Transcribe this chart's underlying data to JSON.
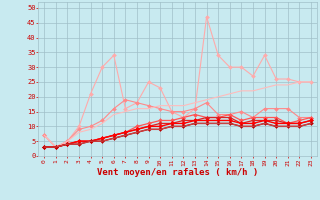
{
  "title": "",
  "xlabel": "Vent moyen/en rafales ( km/h )",
  "xlim": [
    -0.5,
    23.5
  ],
  "ylim": [
    0,
    52
  ],
  "yticks": [
    0,
    5,
    10,
    15,
    20,
    25,
    30,
    35,
    40,
    45,
    50
  ],
  "xticks": [
    0,
    1,
    2,
    3,
    4,
    5,
    6,
    7,
    8,
    9,
    10,
    11,
    12,
    13,
    14,
    15,
    16,
    17,
    18,
    19,
    20,
    21,
    22,
    23
  ],
  "background_color": "#c8eaf0",
  "grid_color": "#a0bfc8",
  "series": [
    {
      "color": "#ffaaaa",
      "linewidth": 0.8,
      "marker": "D",
      "markersize": 2.0,
      "values": [
        7,
        3,
        5,
        10,
        21,
        30,
        34,
        16,
        18,
        25,
        23,
        15,
        13,
        16,
        47,
        34,
        30,
        30,
        27,
        34,
        26,
        26,
        25,
        25
      ]
    },
    {
      "color": "#ff8888",
      "linewidth": 0.8,
      "marker": "D",
      "markersize": 2.0,
      "values": [
        7,
        3,
        5,
        9,
        10,
        12,
        16,
        19,
        18,
        17,
        16,
        15,
        15,
        16,
        18,
        14,
        14,
        15,
        13,
        16,
        16,
        16,
        13,
        13
      ]
    },
    {
      "color": "#ffbbbb",
      "linewidth": 0.8,
      "marker": null,
      "markersize": 0,
      "values": [
        7,
        3,
        5,
        8,
        9,
        11,
        14,
        15,
        16,
        16,
        17,
        17,
        17,
        18,
        19,
        20,
        21,
        22,
        22,
        23,
        24,
        24,
        25,
        25
      ]
    },
    {
      "color": "#ff5555",
      "linewidth": 0.9,
      "marker": "D",
      "markersize": 2.0,
      "values": [
        3,
        3,
        4,
        5,
        5,
        6,
        7,
        8,
        10,
        11,
        12,
        12,
        13,
        14,
        13,
        13,
        14,
        12,
        13,
        13,
        13,
        11,
        12,
        13
      ]
    },
    {
      "color": "#dd2222",
      "linewidth": 0.9,
      "marker": "D",
      "markersize": 2.0,
      "values": [
        3,
        3,
        4,
        5,
        5,
        6,
        7,
        8,
        9,
        10,
        11,
        11,
        12,
        12,
        13,
        13,
        13,
        11,
        12,
        12,
        12,
        11,
        11,
        12
      ]
    },
    {
      "color": "#ff0000",
      "linewidth": 1.0,
      "marker": "D",
      "markersize": 2.0,
      "values": [
        3,
        3,
        4,
        5,
        5,
        6,
        7,
        8,
        9,
        10,
        10,
        11,
        11,
        12,
        12,
        12,
        12,
        11,
        11,
        12,
        11,
        11,
        11,
        12
      ]
    },
    {
      "color": "#bb0000",
      "linewidth": 1.0,
      "marker": "D",
      "markersize": 2.0,
      "values": [
        3,
        3,
        4,
        4,
        5,
        5,
        6,
        7,
        8,
        9,
        9,
        10,
        10,
        11,
        11,
        11,
        11,
        10,
        10,
        11,
        10,
        10,
        10,
        11
      ]
    },
    {
      "color": "#cc4444",
      "linewidth": 0.8,
      "marker": null,
      "markersize": 0,
      "values": [
        3,
        3,
        4,
        4,
        5,
        5,
        6,
        7,
        8,
        9,
        9,
        10,
        10,
        11,
        11,
        11,
        11,
        10,
        10,
        11,
        10,
        10,
        10,
        11
      ]
    }
  ]
}
